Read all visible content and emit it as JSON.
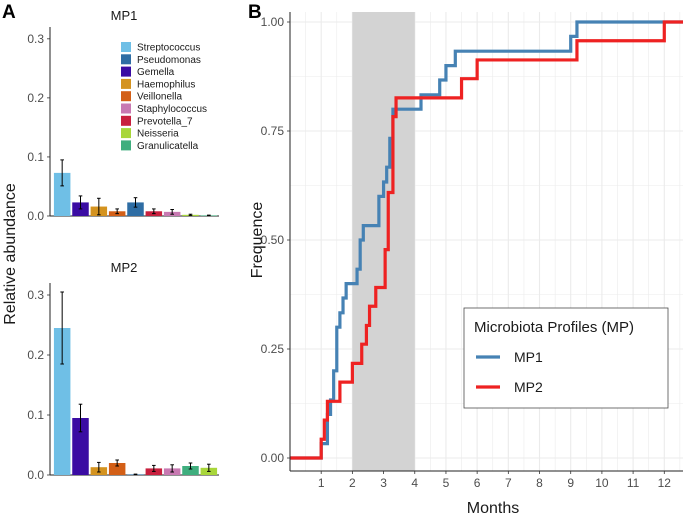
{
  "panel_a_label": "A",
  "panel_b_label": "B",
  "chart_data": [
    {
      "id": "MP1",
      "type": "bar",
      "title": "MP1",
      "xlabel": "",
      "ylabel": "Relative abundance",
      "ylim": [
        0,
        0.32
      ],
      "yticks": [
        0.0,
        0.1,
        0.2,
        0.3
      ],
      "ytick_labels": [
        "0.0",
        "0.1",
        "0.2",
        "0.3"
      ],
      "categories": [
        "Streptococcus",
        "Gemella",
        "Haemophilus",
        "Veillonella",
        "Pseudomonas",
        "Prevotella_7",
        "Staphylococcus",
        "Neisseria",
        "Granulicatella"
      ],
      "values": [
        0.073,
        0.023,
        0.016,
        0.008,
        0.023,
        0.008,
        0.007,
        0.002,
        0.001
      ],
      "errors": [
        0.022,
        0.011,
        0.014,
        0.004,
        0.008,
        0.004,
        0.004,
        0.001,
        0.0005
      ],
      "colors": [
        "#6fbfe6",
        "#3a0ca3",
        "#d4931f",
        "#d35f17",
        "#2e6da4",
        "#c8203e",
        "#c879b2",
        "#a8d63a",
        "#3fae7e"
      ],
      "legend": {
        "position": "top-right",
        "entries": [
          {
            "label": "Streptococcus",
            "color": "#6fbfe6"
          },
          {
            "label": "Pseudomonas",
            "color": "#2e6da4"
          },
          {
            "label": "Gemella",
            "color": "#3a0ca3"
          },
          {
            "label": "Haemophilus",
            "color": "#d4931f"
          },
          {
            "label": "Veillonella",
            "color": "#d35f17"
          },
          {
            "label": "Staphylococcus",
            "color": "#c879b2"
          },
          {
            "label": "Prevotella_7",
            "color": "#c8203e"
          },
          {
            "label": "Neisseria",
            "color": "#a8d63a"
          },
          {
            "label": "Granulicatella",
            "color": "#3fae7e"
          }
        ]
      }
    },
    {
      "id": "MP2",
      "type": "bar",
      "title": "MP2",
      "xlabel": "",
      "ylabel": "Relative abundance",
      "ylim": [
        0,
        0.32
      ],
      "yticks": [
        0.0,
        0.1,
        0.2,
        0.3
      ],
      "ytick_labels": [
        "0.0",
        "0.1",
        "0.2",
        "0.3"
      ],
      "categories": [
        "Streptococcus",
        "Gemella",
        "Haemophilus",
        "Veillonella",
        "Pseudomonas",
        "Prevotella_7",
        "Staphylococcus",
        "Granulicatella",
        "Neisseria"
      ],
      "values": [
        0.245,
        0.095,
        0.013,
        0.02,
        0.001,
        0.011,
        0.011,
        0.015,
        0.012
      ],
      "errors": [
        0.06,
        0.023,
        0.008,
        0.005,
        0.0005,
        0.005,
        0.006,
        0.005,
        0.006
      ],
      "colors": [
        "#6fbfe6",
        "#3a0ca3",
        "#d4931f",
        "#d35f17",
        "#2e6da4",
        "#c8203e",
        "#c879b2",
        "#3fae7e",
        "#a8d63a"
      ]
    },
    {
      "id": "B",
      "type": "line",
      "subtype": "step",
      "title": "",
      "xlabel": "Months",
      "ylabel": "Frequence",
      "xlim": [
        0,
        12.6
      ],
      "ylim": [
        0,
        1.0
      ],
      "xticks": [
        1,
        2,
        3,
        4,
        5,
        6,
        7,
        8,
        9,
        10,
        11,
        12
      ],
      "xtick_labels": [
        "1",
        "2",
        "3",
        "4",
        "5",
        "6",
        "7",
        "8",
        "9",
        "10",
        "11",
        "12"
      ],
      "yticks": [
        0.0,
        0.25,
        0.5,
        0.75,
        1.0
      ],
      "ytick_labels": [
        "0.00",
        "0.25",
        "0.50",
        "0.75",
        "1.00"
      ],
      "shaded_region": {
        "x_start": 2,
        "x_end": 4,
        "color": "#d3d3d3"
      },
      "legend": {
        "title": "Microbiota Profiles (MP)",
        "position": "bottom-right"
      },
      "series": [
        {
          "name": "MP1",
          "color": "#4682b4",
          "x": [
            0,
            1.0,
            1.2,
            1.3,
            1.4,
            1.5,
            1.6,
            1.7,
            1.8,
            1.9,
            2.0,
            2.15,
            2.25,
            2.35,
            2.5,
            2.85,
            3.0,
            3.1,
            3.2,
            3.3,
            3.45,
            4.2,
            4.5,
            4.8,
            5.0,
            5.3,
            5.6,
            9.0,
            9.2,
            12.6
          ],
          "y": [
            0,
            0.033,
            0.1,
            0.133,
            0.2,
            0.3,
            0.333,
            0.367,
            0.4,
            0.4,
            0.4,
            0.433,
            0.5,
            0.533,
            0.533,
            0.6,
            0.633,
            0.667,
            0.733,
            0.8,
            0.8,
            0.833,
            0.833,
            0.867,
            0.9,
            0.933,
            0.933,
            0.967,
            1.0,
            1.0
          ]
        },
        {
          "name": "MP2",
          "color": "#ee2222",
          "x": [
            0,
            1.0,
            1.1,
            1.2,
            1.5,
            1.6,
            1.9,
            2.0,
            2.3,
            2.45,
            2.55,
            2.75,
            3.05,
            3.15,
            3.3,
            3.4,
            4.6,
            5.0,
            5.5,
            6.0,
            9.0,
            9.2,
            12.0,
            12.6
          ],
          "y": [
            0,
            0.043,
            0.087,
            0.13,
            0.13,
            0.174,
            0.174,
            0.217,
            0.261,
            0.304,
            0.348,
            0.391,
            0.478,
            0.609,
            0.783,
            0.826,
            0.826,
            0.826,
            0.87,
            0.913,
            0.913,
            0.957,
            1.0,
            1.0
          ]
        }
      ]
    }
  ]
}
